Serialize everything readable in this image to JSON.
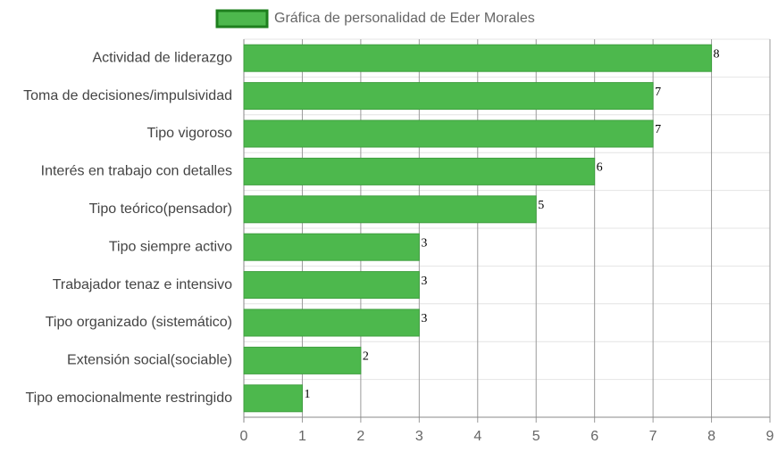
{
  "chart_data": {
    "type": "hbar",
    "categories": [
      "Actividad de liderazgo",
      "Toma de decisiones/impulsividad",
      "Tipo vigoroso",
      "Interés en trabajo con detalles",
      "Tipo teórico(pensador)",
      "Tipo siempre activo",
      "Trabajador tenaz e intensivo",
      "Tipo organizado (sistemático)",
      "Extensión social(sociable)",
      "Tipo emocionalmente restringido"
    ],
    "series": [
      {
        "name": "Gráfica de personalidad de Eder Morales",
        "color": "#4db84d",
        "values": [
          8,
          7,
          7,
          6,
          5,
          3,
          3,
          3,
          2,
          1
        ]
      }
    ],
    "xlim": [
      0,
      9
    ],
    "xticks": [
      0,
      1,
      2,
      3,
      4,
      5,
      6,
      7,
      8,
      9
    ],
    "grid": true,
    "legend": "top"
  }
}
